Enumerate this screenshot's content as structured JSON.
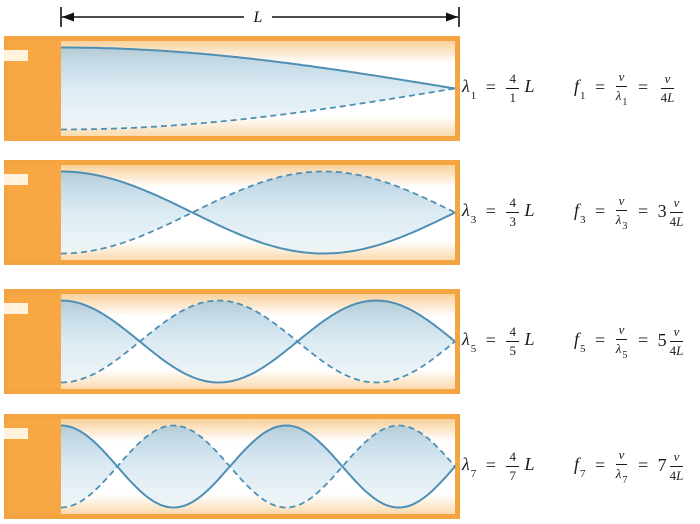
{
  "strings": {
    "equals": "="
  },
  "length_label": "L",
  "colors": {
    "tube_border": "#F4A440",
    "tube_cap": "#F7A845",
    "notch_fill": "#FFF3DC",
    "interior_top": "#F8CB90",
    "interior_mid": "#FFFFFF",
    "interior_bottom": "#F9D6A4",
    "wave_stroke": "#4E8FB4",
    "wave_fill_top": "#A9C9DC",
    "wave_fill_mid": "#D6E7F0",
    "wave_fill_bottom": "#EDF5F9"
  },
  "panels": [
    {
      "n": 1,
      "lambda_eq": {
        "symbol": "λ",
        "sub": "1",
        "num": "4",
        "den": "1",
        "factor": "L"
      },
      "freq_eq": {
        "symbol": "f",
        "sub": "1",
        "num1": "v",
        "den1_symbol": "λ",
        "den1_sub": "1",
        "coeff": "",
        "num2": "v",
        "den2_digit": "4",
        "den2_var": "L"
      }
    },
    {
      "n": 3,
      "lambda_eq": {
        "symbol": "λ",
        "sub": "3",
        "num": "4",
        "den": "3",
        "factor": "L"
      },
      "freq_eq": {
        "symbol": "f",
        "sub": "3",
        "num1": "v",
        "den1_symbol": "λ",
        "den1_sub": "3",
        "coeff": "3",
        "num2": "v",
        "den2_digit": "4",
        "den2_var": "L"
      }
    },
    {
      "n": 5,
      "lambda_eq": {
        "symbol": "λ",
        "sub": "5",
        "num": "4",
        "den": "5",
        "factor": "L"
      },
      "freq_eq": {
        "symbol": "f",
        "sub": "5",
        "num1": "v",
        "den1_symbol": "λ",
        "den1_sub": "5",
        "coeff": "5",
        "num2": "v",
        "den2_digit": "4",
        "den2_var": "L"
      }
    },
    {
      "n": 7,
      "lambda_eq": {
        "symbol": "λ",
        "sub": "7",
        "num": "4",
        "den": "7",
        "factor": "L"
      },
      "freq_eq": {
        "symbol": "f",
        "sub": "7",
        "num1": "v",
        "den1_symbol": "λ",
        "den1_sub": "7",
        "coeff": "7",
        "num2": "v",
        "den2_digit": "4",
        "den2_var": "L"
      }
    }
  ]
}
